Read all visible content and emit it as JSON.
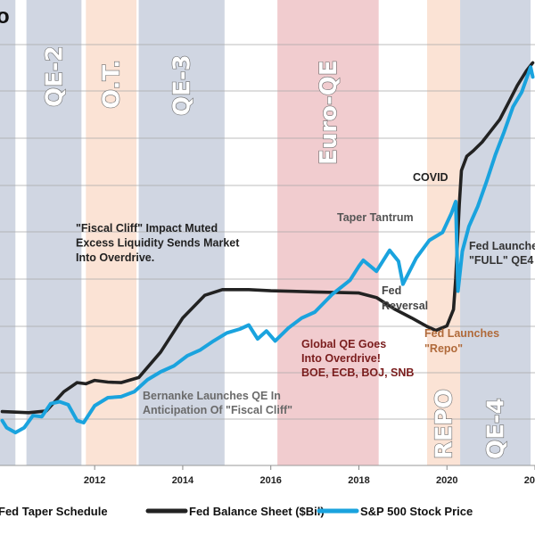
{
  "chart_data": {
    "type": "line",
    "title": "",
    "xlabel": "",
    "ylabel": "",
    "x_ticks": [
      "2012",
      "2014",
      "2016",
      "2018",
      "2020",
      "20"
    ],
    "bands": [
      {
        "label": "",
        "start": 2009.85,
        "end": 2010.2,
        "color": "#d0d6e2",
        "vertical": false
      },
      {
        "label": "QE-2",
        "start": 2010.45,
        "end": 2011.7,
        "color": "#d0d6e2",
        "vertical": true
      },
      {
        "label": "O.T.",
        "start": 2011.8,
        "end": 2012.95,
        "color": "#fbe3d5",
        "vertical": true
      },
      {
        "label": "QE-3",
        "start": 2013.0,
        "end": 2014.95,
        "color": "#d0d6e2",
        "vertical": true
      },
      {
        "label": "Euro-QE",
        "start": 2016.15,
        "end": 2018.45,
        "color": "#f1cccf",
        "vertical": true
      },
      {
        "label": "REPO",
        "start": 2019.55,
        "end": 2020.3,
        "color": "#fbe3d5",
        "vertical": true
      },
      {
        "label": "QE-4",
        "start": 2020.3,
        "end": 2021.9,
        "color": "#d0d6e2",
        "vertical": true
      }
    ],
    "series": [
      {
        "name": "Fed Balance Sheet ($Bil)",
        "color": "#222222",
        "x": [
          2009.9,
          2010.5,
          2010.9,
          2011.3,
          2011.6,
          2011.8,
          2012.0,
          2012.3,
          2012.6,
          2013.0,
          2013.5,
          2014.0,
          2014.5,
          2014.9,
          2015.5,
          2016.0,
          2016.5,
          2017.0,
          2017.5,
          2018.0,
          2018.4,
          2018.8,
          2019.2,
          2019.55,
          2019.75,
          2020.0,
          2020.15,
          2020.2,
          2020.28,
          2020.33,
          2020.45,
          2020.6,
          2020.8,
          2021.0,
          2021.2,
          2021.4,
          2021.6,
          2021.8,
          2021.95
        ],
        "values": [
          2350,
          2330,
          2360,
          2700,
          2860,
          2840,
          2900,
          2870,
          2860,
          2950,
          3400,
          4000,
          4400,
          4500,
          4500,
          4480,
          4470,
          4460,
          4450,
          4440,
          4360,
          4160,
          4000,
          3850,
          3780,
          3860,
          4150,
          4700,
          6000,
          6600,
          6850,
          6950,
          7100,
          7300,
          7500,
          7800,
          8100,
          8350,
          8500
        ]
      },
      {
        "name": "S&P 500 Stock Price",
        "color": "#1aa3de",
        "x": [
          2009.9,
          2010.0,
          2010.2,
          2010.4,
          2010.6,
          2010.8,
          2011.0,
          2011.2,
          2011.4,
          2011.6,
          2011.75,
          2012.0,
          2012.3,
          2012.6,
          2012.9,
          2013.2,
          2013.5,
          2013.8,
          2014.1,
          2014.4,
          2014.7,
          2015.0,
          2015.3,
          2015.5,
          2015.7,
          2015.9,
          2016.1,
          2016.4,
          2016.7,
          2017.0,
          2017.4,
          2017.8,
          2018.0,
          2018.1,
          2018.4,
          2018.7,
          2018.9,
          2019.0,
          2019.3,
          2019.6,
          2019.9,
          2020.1,
          2020.2,
          2020.25,
          2020.35,
          2020.5,
          2020.7,
          2020.9,
          2021.1,
          2021.3,
          2021.5,
          2021.7,
          2021.9,
          2021.95
        ],
        "values": [
          1150,
          1080,
          1030,
          1080,
          1200,
          1190,
          1320,
          1340,
          1310,
          1150,
          1130,
          1300,
          1380,
          1390,
          1440,
          1560,
          1640,
          1700,
          1800,
          1860,
          1950,
          2030,
          2070,
          2110,
          1970,
          2050,
          1950,
          2080,
          2180,
          2240,
          2420,
          2560,
          2700,
          2760,
          2650,
          2860,
          2750,
          2520,
          2780,
          2960,
          3040,
          3230,
          3350,
          2450,
          2850,
          3100,
          3300,
          3550,
          3820,
          4050,
          4300,
          4450,
          4700,
          4600
        ]
      }
    ],
    "legend": {
      "position": "bottom",
      "items": [
        {
          "label": "Fed Taper Schedule",
          "style": "none"
        },
        {
          "label": "Fed Balance Sheet ($Bil)",
          "color": "#222222"
        },
        {
          "label": "S&P 500 Stock Price",
          "color": "#1aa3de"
        }
      ]
    },
    "annotations": [
      {
        "lines": [
          "\"Fiscal Cliff\" Impact Muted",
          "Excess Liquidity Sends Market",
          "Into Overdrive."
        ],
        "color": "#222222"
      },
      {
        "lines": [
          "Bernanke Launches QE In",
          "Anticipation Of \"Fiscal Cliff\""
        ],
        "color": "#6a6a6a"
      },
      {
        "lines": [
          "Global QE Goes",
          "Into Overdrive!",
          "BOE, ECB, BOJ, SNB"
        ],
        "color": "#7a1d1d"
      },
      {
        "lines": [
          "Taper Tantrum"
        ],
        "color": "#555555"
      },
      {
        "lines": [
          "Fed",
          "Reversal"
        ],
        "color": "#444444"
      },
      {
        "lines": [
          "COVID"
        ],
        "color": "#222222"
      },
      {
        "lines": [
          "Fed Launches",
          "\"FULL\" QE4"
        ],
        "color": "#333333"
      },
      {
        "lines": [
          "Fed Launches",
          "\"Repo\""
        ],
        "color": "#b06a3a"
      }
    ],
    "top_left_fragment": "o"
  }
}
